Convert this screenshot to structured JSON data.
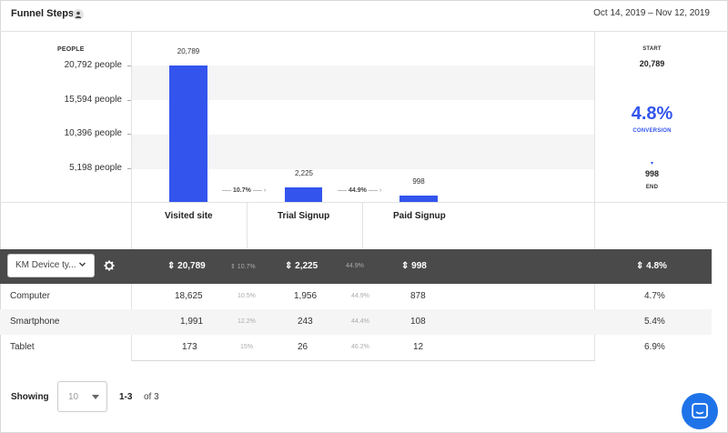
{
  "header": {
    "title": "Funnel Steps",
    "date_range": "Oct 14, 2019 – Nov 12, 2019",
    "user_icon": "user-icon"
  },
  "chart_data": {
    "type": "bar",
    "ylabel": "PEOPLE",
    "categories": [
      "Visited site",
      "Trial Signup",
      "Paid Signup"
    ],
    "values": [
      20789,
      2225,
      998
    ],
    "value_labels": [
      "20,789",
      "2,225",
      "998"
    ],
    "y_ticks": [
      "20,792 people",
      "15,594 people",
      "10,396 people",
      "5,198 people"
    ],
    "y_tick_values": [
      20792,
      15594,
      10396,
      5198
    ],
    "ylim": [
      0,
      20792
    ],
    "step_conversions": [
      "10.7%",
      "44.9%"
    ],
    "bar_color": "#3355ee"
  },
  "summary": {
    "start_label": "START",
    "start_value": "20,789",
    "conversion_pct": "4.8%",
    "conversion_label": "CONVERSION",
    "arrow": "▾",
    "end_value": "998",
    "end_label": "END"
  },
  "toolbar": {
    "group_by": "KM Device ty...",
    "settings_icon": "gear-icon",
    "totals": [
      "⇕ 20,789",
      "⇕ 2,225",
      "⇕ 998"
    ],
    "total_conversions": [
      "⇕ 10.7%",
      "44.9%"
    ],
    "overall": "⇕ 4.8%"
  },
  "table": {
    "rows": [
      {
        "label": "Computer",
        "v1": "18,625",
        "c1": "10.5%",
        "v2": "1,956",
        "c2": "44.9%",
        "v3": "878",
        "overall": "4.7%"
      },
      {
        "label": "Smartphone",
        "v1": "1,991",
        "c1": "12.2%",
        "v2": "243",
        "c2": "44.4%",
        "v3": "108",
        "overall": "5.4%"
      },
      {
        "label": "Tablet",
        "v1": "173",
        "c1": "15%",
        "v2": "26",
        "c2": "46.2%",
        "v3": "12",
        "overall": "6.9%"
      }
    ]
  },
  "footer": {
    "showing_label": "Showing",
    "page_size": "10",
    "range": "1-3",
    "of": "of 3"
  },
  "colors": {
    "accent": "#3355ee",
    "dark_bar": "#4a4a4a",
    "chat": "#1f73e8"
  }
}
